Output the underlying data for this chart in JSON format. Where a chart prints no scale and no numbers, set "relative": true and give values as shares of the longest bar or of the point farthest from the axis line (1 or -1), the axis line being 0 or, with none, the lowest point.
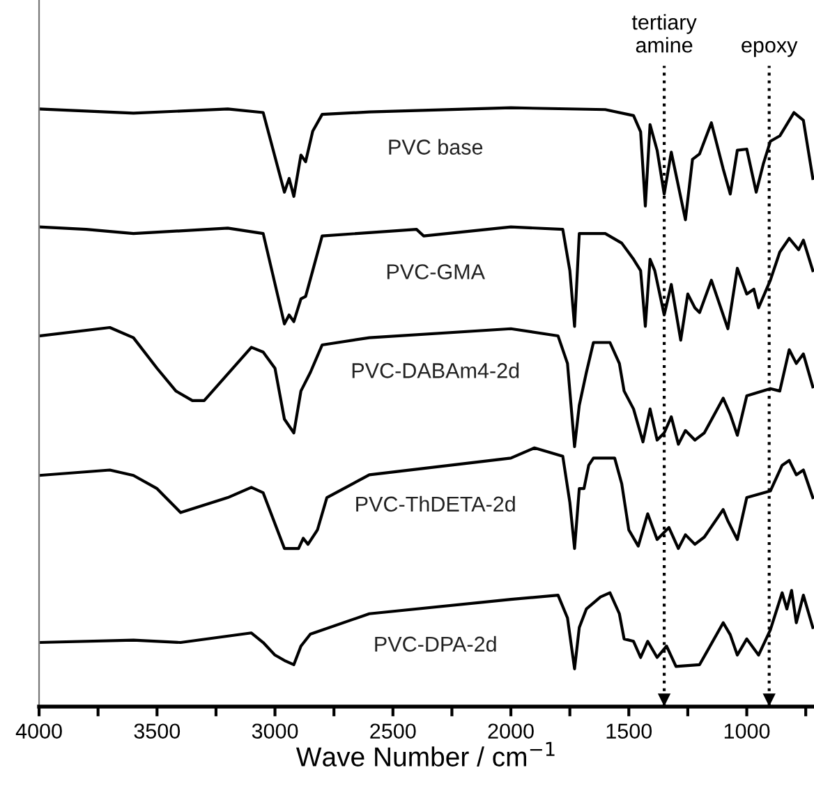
{
  "chart_data": {
    "type": "line",
    "relative": true,
    "xlabel": "Wave Number / cm$^{−1}$",
    "xlim": [
      4000,
      715
    ],
    "xticks": [
      4000,
      {
        "value": 3750,
        "label": null
      },
      3500,
      {
        "value": 3250,
        "label": null
      },
      3000,
      {
        "value": 2750,
        "label": null
      },
      2500,
      {
        "value": 2250,
        "label": null
      },
      2000,
      {
        "value": 1750,
        "label": null
      },
      1500,
      {
        "value": 1250,
        "label": null
      },
      1000,
      {
        "value": 750,
        "label": null
      }
    ],
    "grid": false,
    "legend": false,
    "marker": "none",
    "line_style": "solid",
    "tick_labels": "x",
    "ref_lines": [
      {
        "axis": "x",
        "value": 1350,
        "label": "tertiary\namine",
        "line_style": "dotted",
        "color": "#000000"
      },
      {
        "axis": "x",
        "value": 905,
        "label": "epoxy",
        "line_style": "dotted",
        "color": "#000000"
      }
    ],
    "series": [
      {
        "name": "PVC base",
        "color": "#000000",
        "x": [
          4000,
          3600,
          3200,
          3050,
          2960,
          2940,
          2920,
          2890,
          2870,
          2840,
          2800,
          2600,
          2000,
          1600,
          1480,
          1450,
          1430,
          1410,
          1380,
          1350,
          1320,
          1260,
          1230,
          1200,
          1150,
          1100,
          1070,
          1040,
          1000,
          960,
          930,
          900,
          860,
          800,
          760,
          720
        ],
        "values": [
          0.998,
          0.991,
          0.998,
          0.992,
          0.859,
          0.882,
          0.852,
          0.921,
          0.91,
          0.961,
          0.989,
          0.993,
          1.0,
          0.997,
          0.987,
          0.96,
          0.836,
          0.972,
          0.929,
          0.856,
          0.926,
          0.813,
          0.914,
          0.923,
          0.975,
          0.898,
          0.856,
          0.929,
          0.931,
          0.859,
          0.906,
          0.944,
          0.953,
          0.992,
          0.979,
          0.882
        ]
      },
      {
        "name": "PVC-GMA",
        "color": "#000000",
        "x": [
          4000,
          3800,
          3600,
          3200,
          3050,
          2960,
          2940,
          2920,
          2890,
          2870,
          2840,
          2800,
          2400,
          2370,
          2000,
          1780,
          1750,
          1730,
          1710,
          1600,
          1530,
          1480,
          1450,
          1430,
          1410,
          1390,
          1350,
          1320,
          1280,
          1250,
          1220,
          1200,
          1150,
          1080,
          1040,
          1000,
          970,
          950,
          900,
          860,
          820,
          780,
          760,
          720
        ],
        "values": [
          0.801,
          0.797,
          0.79,
          0.799,
          0.79,
          0.639,
          0.654,
          0.643,
          0.681,
          0.685,
          0.728,
          0.786,
          0.797,
          0.786,
          0.801,
          0.797,
          0.728,
          0.635,
          0.79,
          0.79,
          0.774,
          0.747,
          0.728,
          0.635,
          0.747,
          0.728,
          0.654,
          0.705,
          0.612,
          0.689,
          0.666,
          0.658,
          0.712,
          0.631,
          0.732,
          0.689,
          0.697,
          0.666,
          0.712,
          0.759,
          0.782,
          0.763,
          0.779,
          0.728
        ]
      },
      {
        "name": "PVC-DABAm4-2d",
        "color": "#000000",
        "x": [
          4000,
          3700,
          3600,
          3500,
          3420,
          3350,
          3300,
          3100,
          3050,
          3000,
          2960,
          2920,
          2890,
          2850,
          2800,
          2600,
          2000,
          1800,
          1760,
          1730,
          1710,
          1680,
          1650,
          1580,
          1540,
          1520,
          1480,
          1440,
          1410,
          1380,
          1350,
          1320,
          1290,
          1260,
          1220,
          1180,
          1100,
          1070,
          1040,
          1000,
          900,
          860,
          820,
          790,
          760,
          720
        ],
        "values": [
          0.619,
          0.633,
          0.616,
          0.565,
          0.527,
          0.511,
          0.511,
          0.6,
          0.592,
          0.565,
          0.48,
          0.457,
          0.527,
          0.558,
          0.604,
          0.616,
          0.631,
          0.619,
          0.573,
          0.434,
          0.503,
          0.558,
          0.608,
          0.608,
          0.573,
          0.527,
          0.497,
          0.442,
          0.497,
          0.445,
          0.457,
          0.484,
          0.438,
          0.461,
          0.445,
          0.457,
          0.515,
          0.488,
          0.453,
          0.519,
          0.531,
          0.527,
          0.596,
          0.573,
          0.589,
          0.534
        ]
      },
      {
        "name": "PVC-ThDETA-2d",
        "color": "#000000",
        "x": [
          4000,
          3700,
          3600,
          3500,
          3400,
          3200,
          3100,
          3050,
          2960,
          2900,
          2880,
          2860,
          2820,
          2780,
          2600,
          2000,
          1900,
          1780,
          1750,
          1730,
          1710,
          1690,
          1670,
          1650,
          1560,
          1530,
          1500,
          1460,
          1420,
          1380,
          1330,
          1290,
          1260,
          1220,
          1180,
          1100,
          1080,
          1040,
          1000,
          900,
          850,
          820,
          790,
          760,
          720
        ],
        "values": [
          0.386,
          0.395,
          0.386,
          0.364,
          0.324,
          0.349,
          0.366,
          0.357,
          0.264,
          0.264,
          0.281,
          0.271,
          0.295,
          0.349,
          0.387,
          0.415,
          0.432,
          0.418,
          0.341,
          0.264,
          0.364,
          0.364,
          0.403,
          0.415,
          0.415,
          0.372,
          0.295,
          0.268,
          0.322,
          0.279,
          0.299,
          0.264,
          0.287,
          0.271,
          0.283,
          0.329,
          0.31,
          0.279,
          0.349,
          0.36,
          0.403,
          0.411,
          0.387,
          0.395,
          0.349
        ]
      },
      {
        "name": "PVC-DPA-2d",
        "color": "#000000",
        "x": [
          4000,
          3600,
          3400,
          3100,
          3050,
          3000,
          2960,
          2920,
          2890,
          2850,
          2600,
          2000,
          1800,
          1760,
          1730,
          1710,
          1680,
          1620,
          1580,
          1540,
          1520,
          1480,
          1450,
          1420,
          1380,
          1340,
          1300,
          1200,
          1100,
          1070,
          1040,
          1000,
          950,
          900,
          850,
          830,
          810,
          790,
          760,
          720
        ],
        "values": [
          0.107,
          0.111,
          0.107,
          0.123,
          0.107,
          0.086,
          0.077,
          0.07,
          0.101,
          0.121,
          0.155,
          0.179,
          0.186,
          0.148,
          0.063,
          0.132,
          0.163,
          0.183,
          0.19,
          0.155,
          0.113,
          0.109,
          0.082,
          0.109,
          0.082,
          0.101,
          0.067,
          0.07,
          0.14,
          0.12,
          0.086,
          0.113,
          0.086,
          0.128,
          0.19,
          0.163,
          0.194,
          0.14,
          0.186,
          0.132
        ]
      }
    ]
  }
}
